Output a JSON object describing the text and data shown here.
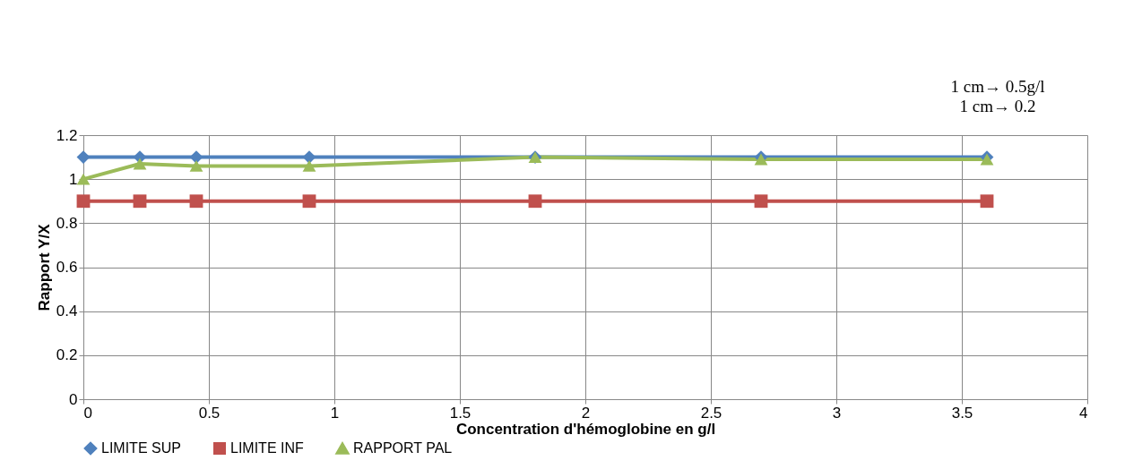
{
  "chart_data": {
    "type": "line",
    "xlabel": "Concentration d'hémoglobine en g/l",
    "ylabel": "Rapport Y/X",
    "x": [
      0,
      0.225,
      0.45,
      0.9,
      1.8,
      2.7,
      3.6
    ],
    "series": [
      {
        "name": "LIMITE SUP",
        "color": "#4f81bd",
        "marker": "diamond",
        "values": [
          1.1,
          1.1,
          1.1,
          1.1,
          1.1,
          1.1,
          1.1
        ]
      },
      {
        "name": "LIMITE INF",
        "color": "#c0504d",
        "marker": "square",
        "values": [
          0.9,
          0.9,
          0.9,
          0.9,
          0.9,
          0.9,
          0.9
        ]
      },
      {
        "name": "RAPPORT PAL",
        "color": "#9bbb59",
        "marker": "triangle",
        "values": [
          1.0,
          1.07,
          1.06,
          1.06,
          1.1,
          1.09,
          1.09
        ]
      }
    ],
    "xlim": [
      0,
      4
    ],
    "xticks": [
      0,
      0.5,
      1,
      1.5,
      2,
      2.5,
      3,
      3.5,
      4
    ],
    "ylim": [
      0,
      1.2
    ],
    "yticks": [
      0,
      0.2,
      0.4,
      0.6,
      0.8,
      1,
      1.2
    ],
    "grid": true,
    "legend": "bottom",
    "line_style": "solid",
    "annotations": [
      "1 cm→  0.5g/l",
      "1 cm→  0.2"
    ]
  }
}
